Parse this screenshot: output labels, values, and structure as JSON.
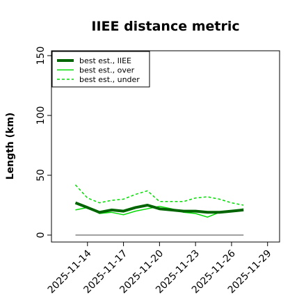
{
  "chart_data": {
    "type": "line",
    "title": "IIEE distance metric",
    "xlabel": "",
    "ylabel": "Length (km)",
    "ylim": [
      0,
      150
    ],
    "yticks": [
      0,
      50,
      100,
      150
    ],
    "xlim": [
      "2025-11-11",
      "2025-11-30"
    ],
    "xticks": [
      "2025-11-14",
      "2025-11-17",
      "2025-11-20",
      "2025-11-23",
      "2025-11-26",
      "2025-11-29"
    ],
    "grid": false,
    "legend_position": "top-left",
    "reference_line": {
      "y": 0,
      "x_start": "2025-11-13",
      "x_end": "2025-11-27",
      "color": "#808080"
    },
    "series": [
      {
        "name": "best est., IIEE",
        "color": "#006400",
        "style": "solid-thick",
        "x": [
          "2025-11-13",
          "2025-11-14",
          "2025-11-15",
          "2025-11-16",
          "2025-11-17",
          "2025-11-18",
          "2025-11-19",
          "2025-11-20",
          "2025-11-21",
          "2025-11-22",
          "2025-11-23",
          "2025-11-24",
          "2025-11-25",
          "2025-11-26",
          "2025-11-27"
        ],
        "values": [
          27,
          23,
          19,
          21,
          20,
          23,
          25,
          22,
          21,
          20,
          20,
          19,
          19,
          20,
          21
        ]
      },
      {
        "name": "best est., over",
        "color": "#00dd00",
        "style": "solid",
        "x": [
          "2025-11-13",
          "2025-11-14",
          "2025-11-15",
          "2025-11-16",
          "2025-11-17",
          "2025-11-18",
          "2025-11-19",
          "2025-11-20",
          "2025-11-21",
          "2025-11-22",
          "2025-11-23",
          "2025-11-24",
          "2025-11-25",
          "2025-11-26",
          "2025-11-27"
        ],
        "values": [
          21,
          23,
          18,
          19,
          17,
          20,
          22,
          24,
          22,
          19,
          18,
          15,
          19,
          20,
          22
        ]
      },
      {
        "name": "best est., under",
        "color": "#00dd00",
        "style": "dashed",
        "x": [
          "2025-11-13",
          "2025-11-14",
          "2025-11-15",
          "2025-11-16",
          "2025-11-17",
          "2025-11-18",
          "2025-11-19",
          "2025-11-20",
          "2025-11-21",
          "2025-11-22",
          "2025-11-23",
          "2025-11-24",
          "2025-11-25",
          "2025-11-26",
          "2025-11-27"
        ],
        "values": [
          42,
          31,
          27,
          29,
          30,
          34,
          37,
          28,
          28,
          28,
          31,
          32,
          30,
          27,
          25
        ]
      }
    ]
  }
}
